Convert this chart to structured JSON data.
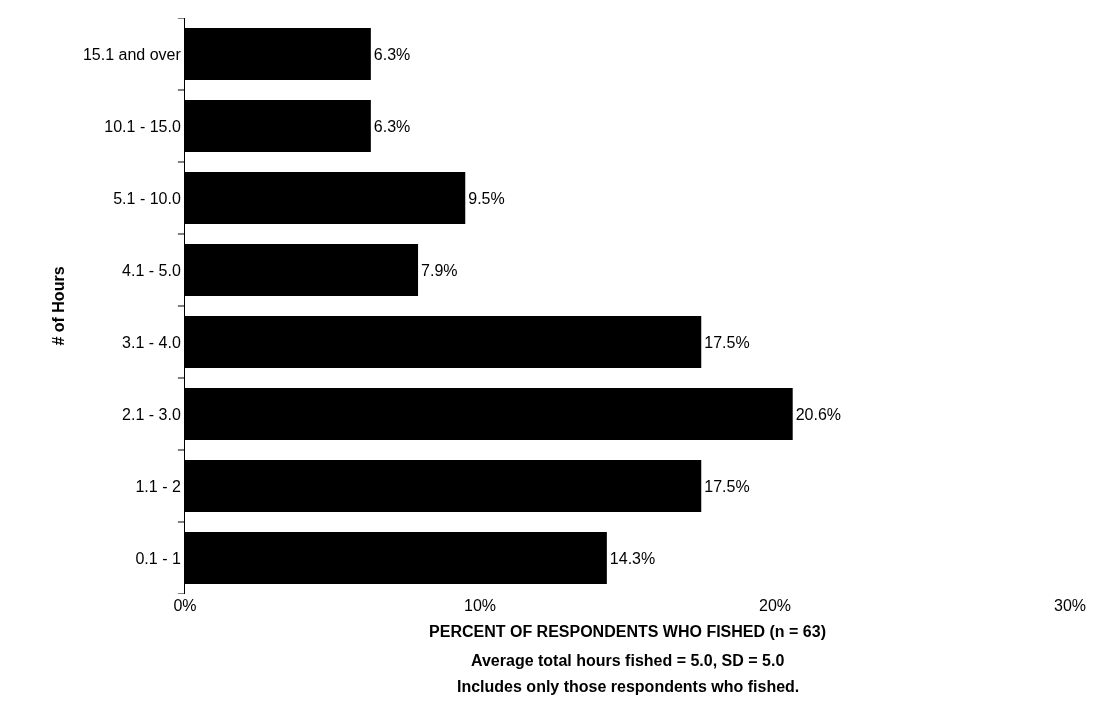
{
  "chart_data": {
    "type": "bar",
    "orientation": "horizontal",
    "categories": [
      "15.1 and over",
      "10.1 - 15.0",
      "5.1 - 10.0",
      "4.1 - 5.0",
      "3.1 - 4.0",
      "2.1 - 3.0",
      "1.1 - 2",
      "0.1 - 1"
    ],
    "values": [
      6.3,
      6.3,
      9.5,
      7.9,
      17.5,
      20.6,
      17.5,
      14.3
    ],
    "value_labels": [
      "6.3%",
      "6.3%",
      "9.5%",
      "7.9%",
      "17.5%",
      "20.6%",
      "17.5%",
      "14.3%"
    ],
    "color": "#000000",
    "xlim": [
      0,
      30
    ],
    "xticks": [
      {
        "value": 0,
        "label": "0%"
      },
      {
        "value": 10,
        "label": "10%"
      },
      {
        "value": 20,
        "label": "20%"
      },
      {
        "value": 30,
        "label": "30%"
      }
    ],
    "xlabel": "PERCENT OF RESPONDENTS WHO FISHED (n = 63)",
    "ylabel": "# of Hours",
    "annotations": [
      "Average total hours fished = 5.0, SD = 5.0",
      "Includes only those respondents who fished."
    ],
    "grid": false
  }
}
